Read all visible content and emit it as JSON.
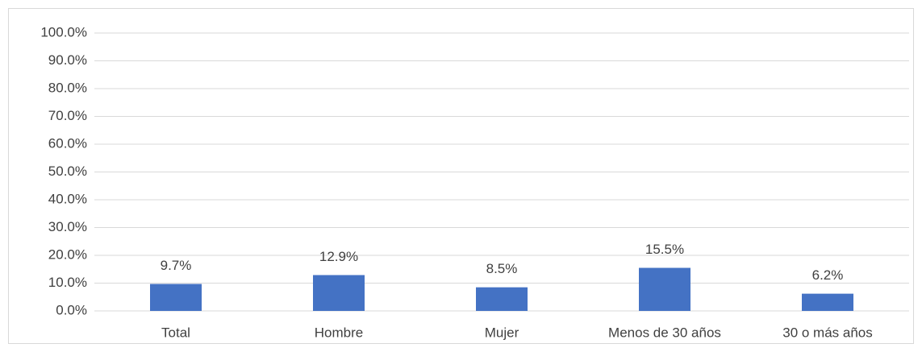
{
  "chart_data": {
    "type": "bar",
    "categories": [
      "Total",
      "Hombre",
      "Mujer",
      "Menos de 30 años",
      "30 o más años"
    ],
    "values": [
      9.7,
      12.9,
      8.5,
      15.5,
      6.2
    ],
    "value_labels": [
      "9.7%",
      "12.9%",
      "8.5%",
      "15.5%",
      "6.2%"
    ],
    "color": "#4472c4",
    "ylim": [
      0,
      100
    ],
    "yticks": [
      {
        "value": 0,
        "label": "0.0%"
      },
      {
        "value": 10,
        "label": "10.0%"
      },
      {
        "value": 20,
        "label": "20.0%"
      },
      {
        "value": 30,
        "label": "30.0%"
      },
      {
        "value": 40,
        "label": "40.0%"
      },
      {
        "value": 50,
        "label": "50.0%"
      },
      {
        "value": 60,
        "label": "60.0%"
      },
      {
        "value": 70,
        "label": "70.0%"
      },
      {
        "value": 80,
        "label": "80.0%"
      },
      {
        "value": 90,
        "label": "90.0%"
      },
      {
        "value": 100,
        "label": "100.0%"
      }
    ],
    "grid": true
  }
}
